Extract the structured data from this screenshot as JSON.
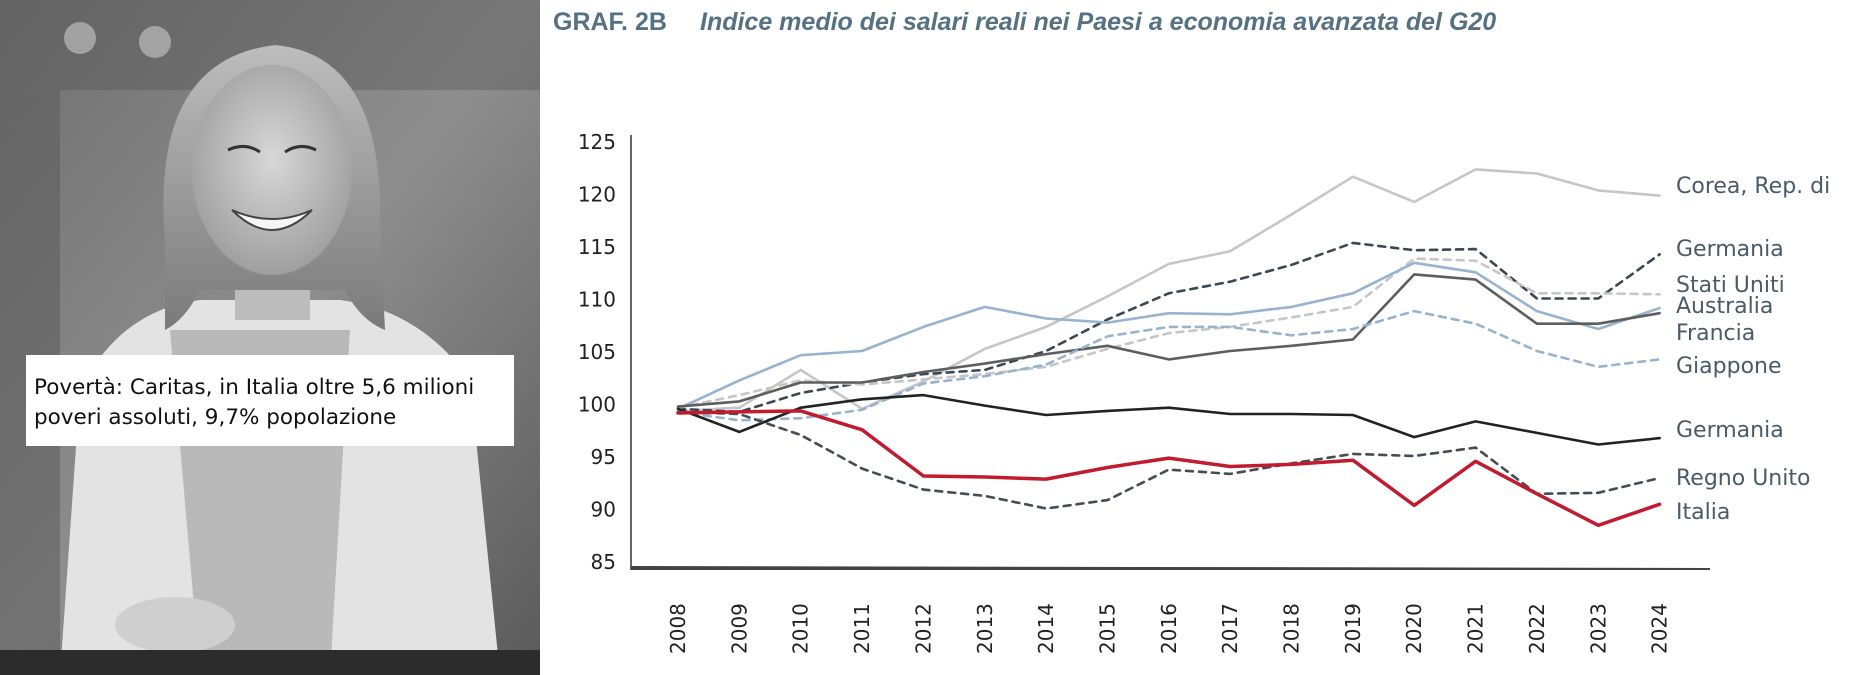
{
  "photo": {
    "caption_line1": "Povertà: Caritas, in Italia oltre 5,6 milioni",
    "caption_line2": "poveri assoluti, 9,7% popolazione"
  },
  "chart_header": {
    "label": "GRAF. 2B",
    "title": "Indice medio dei salari reali nei Paesi a economia avanzata del G20"
  },
  "chart_data": {
    "type": "line",
    "title": "Indice medio dei salari reali nei Paesi a economia avanzata del G20",
    "xlabel": "",
    "ylabel": "",
    "ylim": [
      85,
      125
    ],
    "yticks": [
      85,
      90,
      95,
      100,
      105,
      110,
      115,
      120,
      125
    ],
    "grid": false,
    "x": [
      "2008",
      "2009",
      "2010",
      "2011",
      "2012",
      "2013",
      "2014",
      "2015",
      "2016",
      "2017",
      "2018",
      "2019",
      "2020",
      "2021",
      "2022",
      "2023",
      "2024"
    ],
    "series": [
      {
        "name": "Corea, Rep. di",
        "color": "#c6c6c6",
        "style": "solid",
        "values": [
          99.3,
          99.6,
          103.2,
          99.5,
          102.1,
          105.2,
          107.3,
          110.2,
          113.3,
          114.5,
          118.0,
          121.6,
          119.2,
          122.3,
          121.9,
          120.3,
          119.8
        ]
      },
      {
        "name": "Germania",
        "color": "#3b4752",
        "style": "dashed",
        "values": [
          99.5,
          99.2,
          101.0,
          102.0,
          102.8,
          103.2,
          105.0,
          108.0,
          110.5,
          111.6,
          113.2,
          115.3,
          114.6,
          114.7,
          110.0,
          110.0,
          114.2
        ]
      },
      {
        "name": "Stati Uniti",
        "color": "#c6c6c6",
        "style": "dashed",
        "values": [
          99.6,
          100.8,
          102.2,
          101.8,
          102.3,
          102.8,
          103.5,
          105.2,
          106.7,
          107.3,
          108.2,
          109.2,
          113.8,
          113.6,
          110.5,
          110.5,
          110.4
        ]
      },
      {
        "name": "Australia",
        "color": "#98b3cf",
        "style": "solid",
        "values": [
          99.5,
          102.2,
          104.6,
          105.0,
          107.3,
          109.2,
          108.1,
          107.7,
          108.6,
          108.5,
          109.2,
          110.5,
          113.4,
          112.5,
          108.8,
          107.1,
          109.1
        ]
      },
      {
        "name": "Francia",
        "color": "#5e5e5e",
        "style": "solid",
        "values": [
          99.7,
          100.2,
          102.0,
          102.0,
          103.0,
          103.8,
          104.7,
          105.5,
          104.2,
          105.0,
          105.5,
          106.1,
          112.3,
          111.8,
          107.6,
          107.6,
          108.6
        ]
      },
      {
        "name": "Giappone",
        "color": "#98b3cf",
        "style": "dashed",
        "values": [
          99.2,
          98.4,
          98.6,
          99.4,
          101.9,
          102.6,
          103.7,
          106.4,
          107.3,
          107.3,
          106.5,
          107.1,
          108.8,
          107.6,
          105.0,
          103.5,
          104.2
        ]
      },
      {
        "name": "Germania",
        "color": "#222222",
        "style": "solid",
        "values": [
          99.5,
          97.3,
          99.6,
          100.4,
          100.8,
          99.8,
          98.9,
          99.3,
          99.6,
          99.0,
          99.0,
          98.9,
          96.8,
          98.3,
          97.2,
          96.1,
          96.7
        ]
      },
      {
        "name": "Regno Unito",
        "color": "#454c52",
        "style": "dashed",
        "values": [
          99.2,
          99.0,
          97.0,
          93.8,
          91.8,
          91.2,
          90.0,
          90.8,
          93.7,
          93.3,
          94.3,
          95.2,
          95.0,
          95.8,
          91.4,
          91.5,
          92.9
        ]
      },
      {
        "name": "Italia",
        "color": "#c21a2e",
        "style": "solid",
        "values": [
          99.1,
          99.2,
          99.3,
          97.5,
          93.1,
          93.0,
          92.8,
          93.9,
          94.8,
          94.0,
          94.2,
          94.6,
          90.3,
          94.5,
          91.4,
          88.4,
          90.4
        ]
      }
    ],
    "legend_placement": "right-end-labels"
  }
}
